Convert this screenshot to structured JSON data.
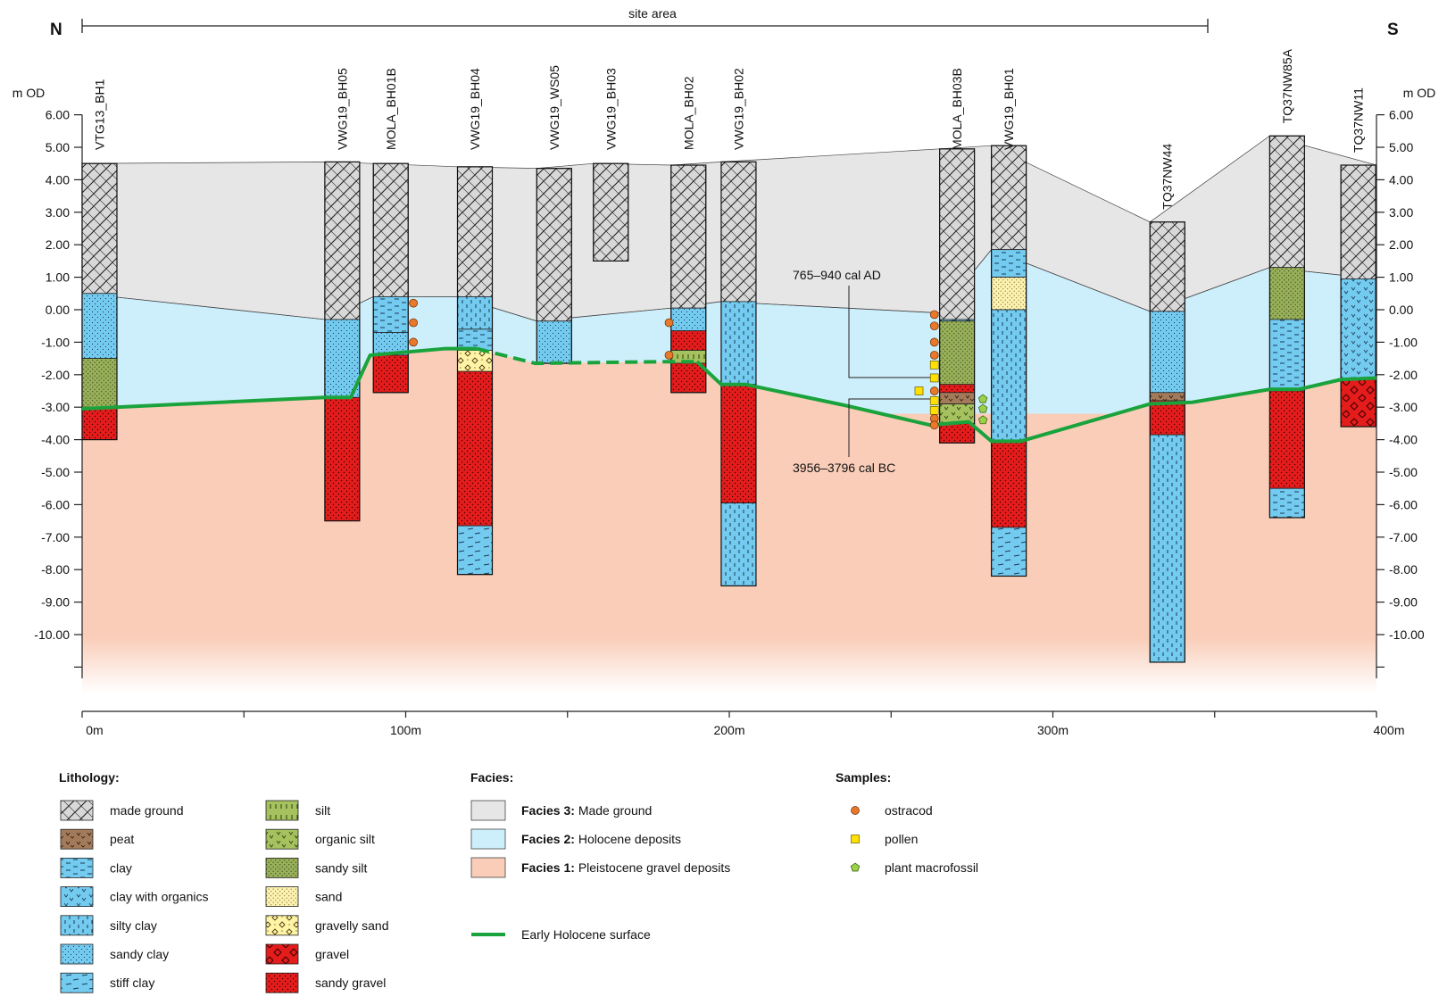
{
  "compass": {
    "north": "N",
    "south": "S"
  },
  "site_area_label": "site area",
  "axis": {
    "left_unit": "m OD",
    "right_unit": "m OD",
    "y_ticks": [
      "6.00",
      "5.00",
      "4.00",
      "3.00",
      "2.00",
      "1.00",
      "0.00",
      "-1.00",
      "-2.00",
      "-3.00",
      "-4.00",
      "-5.00",
      "-6.00",
      "-7.00",
      "-8.00",
      "-9.00",
      "-10.00"
    ],
    "x_ticks": [
      "0m",
      "100m",
      "200m",
      "300m",
      "400m"
    ]
  },
  "annotations": {
    "date_upper": "765–940 cal AD",
    "date_lower": "3956–3796 cal BC"
  },
  "boreholes": [
    {
      "name": "VTG13_BH1",
      "x": 0,
      "top": 4.5,
      "layers": [
        {
          "bottom": 0.5,
          "lith": "made_ground"
        },
        {
          "bottom": -1.5,
          "lith": "sandy_clay"
        },
        {
          "bottom": -3.0,
          "lith": "sandy_silt"
        },
        {
          "bottom": -4.0,
          "lith": "sandy_gravel"
        }
      ]
    },
    {
      "name": "VWG19_BH05",
      "x": 75,
      "top": 4.55,
      "layers": [
        {
          "bottom": -0.3,
          "lith": "made_ground"
        },
        {
          "bottom": -2.7,
          "lith": "sandy_clay"
        },
        {
          "bottom": -6.5,
          "lith": "sandy_gravel"
        }
      ]
    },
    {
      "name": "MOLA_BH01B",
      "x": 90,
      "top": 4.5,
      "layers": [
        {
          "bottom": 0.4,
          "lith": "made_ground"
        },
        {
          "bottom": -0.7,
          "lith": "clay"
        },
        {
          "bottom": -1.4,
          "lith": "sandy_clay"
        },
        {
          "bottom": -2.55,
          "lith": "sandy_gravel"
        }
      ]
    },
    {
      "name": "VWG19_BH04",
      "x": 116,
      "top": 4.4,
      "layers": [
        {
          "bottom": 0.4,
          "lith": "made_ground"
        },
        {
          "bottom": -0.6,
          "lith": "silty_clay"
        },
        {
          "bottom": -1.25,
          "lith": "clay"
        },
        {
          "bottom": -1.9,
          "lith": "gravelly_sand"
        },
        {
          "bottom": -6.65,
          "lith": "sandy_gravel"
        },
        {
          "bottom": -8.15,
          "lith": "stiff_clay"
        }
      ]
    },
    {
      "name": "VWG19_WS05",
      "x": 140.5,
      "top": 4.35,
      "layers": [
        {
          "bottom": -0.35,
          "lith": "made_ground"
        },
        {
          "bottom": -1.65,
          "lith": "sandy_clay"
        }
      ]
    },
    {
      "name": "VWG19_BH03",
      "x": 158,
      "top": 4.5,
      "layers": [
        {
          "bottom": 1.5,
          "lith": "made_ground"
        }
      ]
    },
    {
      "name": "MOLA_BH02",
      "x": 182,
      "top": 4.45,
      "layers": [
        {
          "bottom": 0.05,
          "lith": "made_ground"
        },
        {
          "bottom": -0.65,
          "lith": "sandy_clay"
        },
        {
          "bottom": -1.25,
          "lith": "sandy_gravel"
        },
        {
          "bottom": -1.65,
          "lith": "silt"
        },
        {
          "bottom": -2.55,
          "lith": "sandy_gravel"
        }
      ]
    },
    {
      "name": "VWG19_BH02",
      "x": 197.5,
      "top": 4.55,
      "layers": [
        {
          "bottom": 0.25,
          "lith": "made_ground"
        },
        {
          "bottom": -2.3,
          "lith": "silty_clay"
        },
        {
          "bottom": -5.95,
          "lith": "sandy_gravel"
        },
        {
          "bottom": -8.5,
          "lith": "silty_clay"
        }
      ]
    },
    {
      "name": "MOLA_BH03B",
      "x": 265,
      "top": 4.95,
      "layers": [
        {
          "bottom": -0.3,
          "lith": "made_ground"
        },
        {
          "bottom": -0.35,
          "lith": "clay"
        },
        {
          "bottom": -2.3,
          "lith": "sandy_silt"
        },
        {
          "bottom": -2.55,
          "lith": "sandy_gravel"
        },
        {
          "bottom": -2.9,
          "lith": "peat"
        },
        {
          "bottom": -3.5,
          "lith": "organic_silt"
        },
        {
          "bottom": -4.1,
          "lith": "sandy_gravel"
        }
      ]
    },
    {
      "name": "VWG19_BH01",
      "x": 281,
      "top": 5.05,
      "layers": [
        {
          "bottom": 1.85,
          "lith": "made_ground"
        },
        {
          "bottom": 1.0,
          "lith": "clay"
        },
        {
          "bottom": 0.0,
          "lith": "sand"
        },
        {
          "bottom": -4.05,
          "lith": "silty_clay"
        },
        {
          "bottom": -6.7,
          "lith": "sandy_gravel"
        },
        {
          "bottom": -8.2,
          "lith": "stiff_clay"
        }
      ]
    },
    {
      "name": "TQ37NW44",
      "x": 330,
      "top": 2.7,
      "layers": [
        {
          "bottom": -0.05,
          "lith": "made_ground"
        },
        {
          "bottom": -2.55,
          "lith": "sandy_clay"
        },
        {
          "bottom": -2.8,
          "lith": "peat"
        },
        {
          "bottom": -3.85,
          "lith": "sandy_gravel"
        },
        {
          "bottom": -10.85,
          "lith": "silty_clay"
        }
      ]
    },
    {
      "name": "TQ37NW85A",
      "x": 367,
      "top": 5.35,
      "layers": [
        {
          "bottom": 1.3,
          "lith": "made_ground"
        },
        {
          "bottom": -0.3,
          "lith": "sandy_silt"
        },
        {
          "bottom": -2.5,
          "lith": "clay"
        },
        {
          "bottom": -5.5,
          "lith": "sandy_gravel"
        },
        {
          "bottom": -6.4,
          "lith": "clay"
        }
      ]
    },
    {
      "name": "TQ37NW11",
      "x": 389,
      "top": 4.45,
      "layers": [
        {
          "bottom": 0.95,
          "lith": "made_ground"
        },
        {
          "bottom": -2.15,
          "lith": "clay_with_organics"
        },
        {
          "bottom": -3.6,
          "lith": "gravel"
        }
      ]
    }
  ],
  "samples": [
    {
      "type": "ostracod",
      "x": 101,
      "y": 0.2
    },
    {
      "type": "ostracod",
      "x": 101,
      "y": -0.4
    },
    {
      "type": "ostracod",
      "x": 101,
      "y": -1.0
    },
    {
      "type": "ostracod",
      "x": 180,
      "y": -0.4
    },
    {
      "type": "ostracod",
      "x": 180,
      "y": -1.4
    },
    {
      "type": "ostracod",
      "x": 262,
      "y": -0.15
    },
    {
      "type": "ostracod",
      "x": 262,
      "y": -0.5
    },
    {
      "type": "ostracod",
      "x": 262,
      "y": -1.0
    },
    {
      "type": "ostracod",
      "x": 262,
      "y": -1.4
    },
    {
      "type": "pollen",
      "x": 262,
      "y": -1.7
    },
    {
      "type": "pollen",
      "x": 262,
      "y": -2.1
    },
    {
      "type": "ostracod",
      "x": 262,
      "y": -2.5
    },
    {
      "type": "pollen",
      "x": 260,
      "y": -2.5
    },
    {
      "type": "pollen",
      "x": 262,
      "y": -2.8
    },
    {
      "type": "pollen",
      "x": 262,
      "y": -3.1
    },
    {
      "type": "ostracod",
      "x": 262,
      "y": -3.35
    },
    {
      "type": "ostracod",
      "x": 262,
      "y": -3.55
    },
    {
      "type": "plant_macrofossil",
      "x": 277,
      "y": -2.75
    },
    {
      "type": "plant_macrofossil",
      "x": 277,
      "y": -3.05
    },
    {
      "type": "plant_macrofossil",
      "x": 277,
      "y": -3.4
    }
  ],
  "legend": {
    "lithology_title": "Lithology:",
    "lithology_items": [
      {
        "key": "made_ground",
        "label": "made ground"
      },
      {
        "key": "peat",
        "label": "peat"
      },
      {
        "key": "clay",
        "label": "clay"
      },
      {
        "key": "clay_with_organics",
        "label": "clay with organics"
      },
      {
        "key": "silty_clay",
        "label": "silty clay"
      },
      {
        "key": "sandy_clay",
        "label": "sandy clay"
      },
      {
        "key": "stiff_clay",
        "label": "stiff clay"
      },
      {
        "key": "silt",
        "label": "silt"
      },
      {
        "key": "organic_silt",
        "label": "organic silt"
      },
      {
        "key": "sandy_silt",
        "label": "sandy silt"
      },
      {
        "key": "sand",
        "label": "sand"
      },
      {
        "key": "gravelly_sand",
        "label": "gravelly sand"
      },
      {
        "key": "gravel",
        "label": "gravel"
      },
      {
        "key": "sandy_gravel",
        "label": "sandy gravel"
      }
    ],
    "facies_title": "Facies:",
    "facies_items": [
      {
        "bold": "Facies 3:",
        "label": " Made ground",
        "color": "#e6e6e6"
      },
      {
        "bold": "Facies 2:",
        "label": " Holocene deposits",
        "color": "#cdeefb"
      },
      {
        "bold": "Facies 1:",
        "label": " Pleistocene gravel deposits",
        "color": "#f9cdb8"
      }
    ],
    "surface_label": "Early Holocene surface",
    "samples_title": "Samples:",
    "samples_items": [
      {
        "key": "ostracod",
        "label": "ostracod"
      },
      {
        "key": "pollen",
        "label": "pollen"
      },
      {
        "key": "plant_macrofossil",
        "label": "plant macrofossil"
      }
    ]
  },
  "colors": {
    "facies3": "#e6e6e6",
    "facies2": "#cdeefb",
    "facies1": "#f9cdb8",
    "surface": "#1aa33c",
    "made_ground": "#d8d8d8",
    "peat": "#a47b5a",
    "clay": "#74cbf0",
    "silt": "#a5c25f",
    "organic_silt": "#a5c25f",
    "sandy_silt": "#98b05a",
    "sand": "#fdf2b0",
    "gravelly_sand": "#fff4a6",
    "gravel": "#e41c1c",
    "sandy_gravel": "#e41c1c",
    "ostracod": "#e8782a",
    "pollen": "#ffe000",
    "plant_macrofossil": "#9bd04a"
  }
}
